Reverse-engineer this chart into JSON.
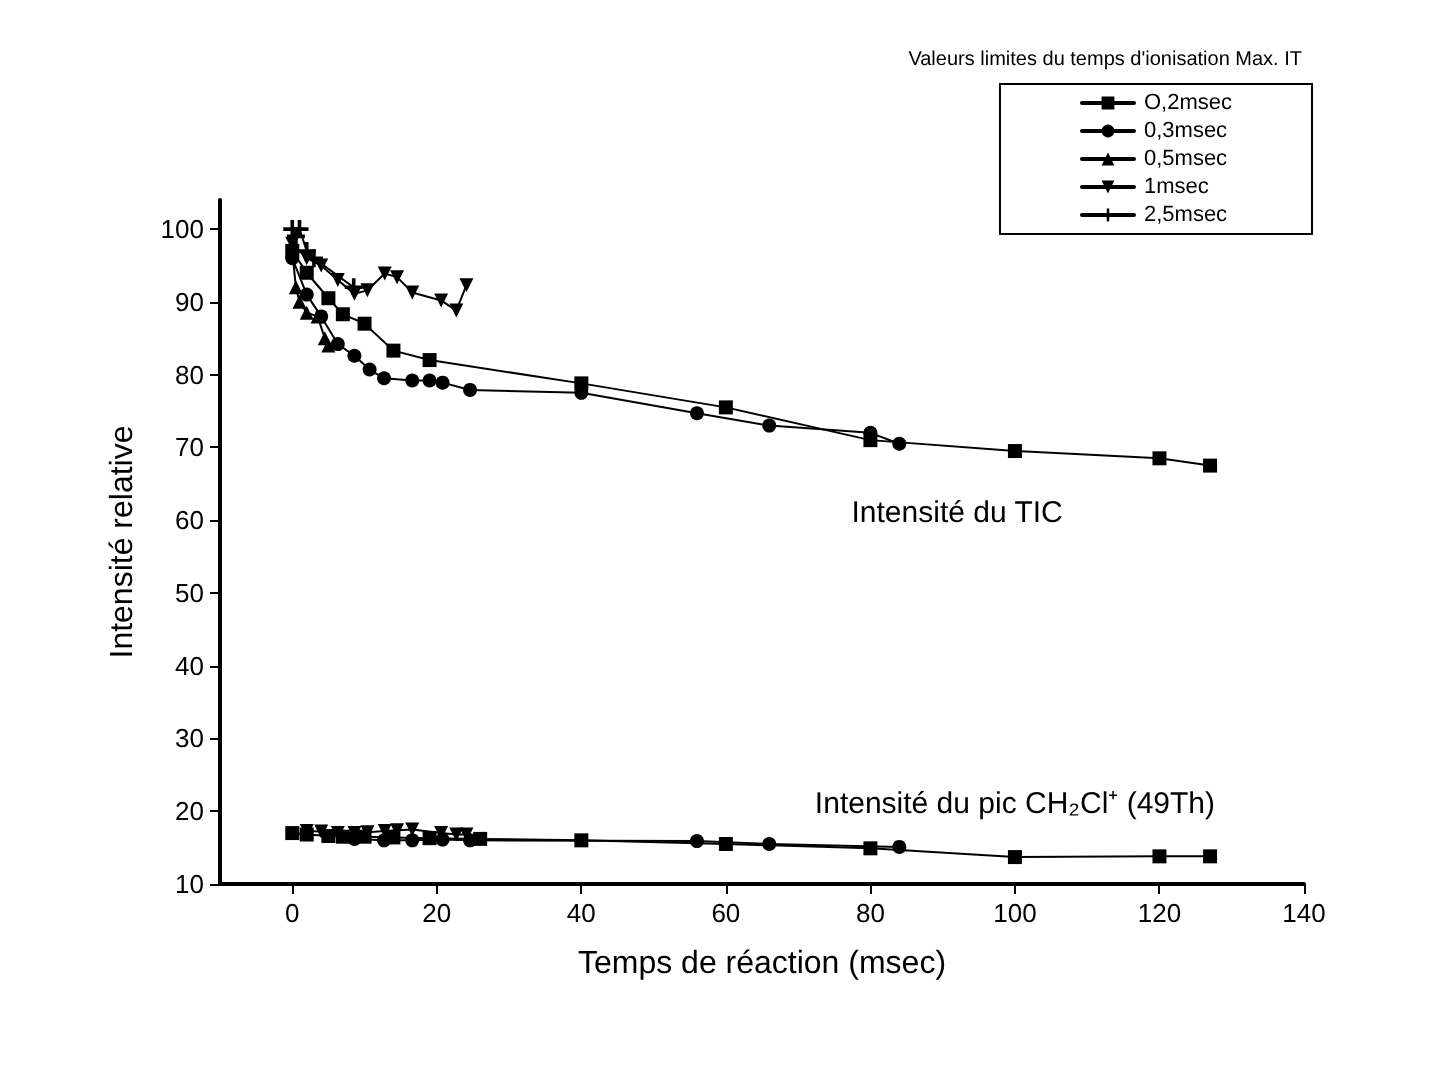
{
  "chart_data": {
    "type": "line",
    "xlabel": "Temps de réaction (msec)",
    "ylabel": "Intensité relative",
    "legend_title": "Valeurs limites du temps d'ionisation Max. IT",
    "legend": "top right",
    "grid": false,
    "line_style": "solid",
    "xlim": [
      -10,
      140
    ],
    "xticks": [
      0,
      20,
      40,
      60,
      80,
      100,
      120,
      140
    ],
    "ylim": [
      10,
      104
    ],
    "yticks": [
      10,
      20,
      30,
      40,
      50,
      60,
      70,
      80,
      90,
      100
    ],
    "annotations": [
      "Intensité du TIC",
      "Intensité du pic CH₂Cl⁺ (49Th)"
    ],
    "series": [
      {
        "name": "O,2msec",
        "color": "#000000",
        "marker": "square",
        "x": [
          0,
          2,
          5,
          7,
          10,
          14,
          19,
          40,
          60,
          80,
          100,
          120,
          127
        ],
        "values": [
          97,
          94,
          90.5,
          88.3,
          87,
          83.3,
          82,
          78.8,
          75.5,
          71,
          69.5,
          68.5,
          67.5
        ]
      },
      {
        "name": "0,3msec",
        "color": "#000000",
        "marker": "circle",
        "x": [
          0,
          2,
          4,
          6.3,
          8.6,
          10.7,
          12.7,
          16.6,
          19,
          20.8,
          24.6,
          40,
          56,
          66,
          80,
          84
        ],
        "values": [
          96,
          91,
          88,
          84.2,
          82.6,
          80.7,
          79.5,
          79.2,
          79.2,
          78.9,
          77.9,
          77.5,
          74.7,
          73,
          72,
          70.5
        ]
      },
      {
        "name": "0,5msec",
        "color": "#000000",
        "marker": "triangle",
        "x": [
          0,
          0.5,
          1,
          2,
          3.5,
          4.5,
          5
        ],
        "values": [
          97,
          92,
          90,
          88.5,
          88,
          85,
          84
        ]
      },
      {
        "name": "1msec",
        "color": "#000000",
        "marker": "triangle-down",
        "x": [
          0,
          2,
          4,
          6.3,
          8.6,
          10.4,
          12.8,
          14.5,
          16.6,
          20.6,
          22.7,
          24.1
        ],
        "values": [
          98,
          96,
          95,
          93,
          91.1,
          91.6,
          93.9,
          93.4,
          91.3,
          90.2,
          88.8,
          92.3
        ]
      },
      {
        "name": "2,5msec",
        "color": "#000000",
        "marker": "cross",
        "x": [
          0,
          0.5,
          1,
          2,
          3,
          8.5
        ],
        "values": [
          100,
          99,
          100,
          97,
          96,
          92
        ]
      },
      {
        "color": "#000000",
        "marker": "square",
        "x": [
          0,
          2,
          5,
          7,
          10,
          14,
          19,
          26,
          40,
          60,
          80,
          100,
          120,
          127
        ],
        "values": [
          17,
          16.8,
          16.6,
          16.5,
          16.5,
          16.4,
          16.3,
          16.2,
          16,
          15.5,
          14.9,
          13.7,
          13.8,
          13.8
        ]
      },
      {
        "color": "#000000",
        "marker": "circle",
        "x": [
          8.6,
          12.7,
          16.6,
          20.8,
          24.6,
          56,
          66,
          84
        ],
        "values": [
          16.2,
          16,
          16,
          16.1,
          16,
          15.9,
          15.5,
          15.1
        ]
      },
      {
        "color": "#000000",
        "marker": "triangle-down",
        "x": [
          2,
          4,
          6.3,
          8.6,
          10.4,
          12.8,
          14.5,
          16.6,
          20.6,
          22.7,
          24.1
        ],
        "values": [
          17.3,
          17.2,
          17,
          17,
          17.1,
          17.3,
          17.4,
          17.5,
          17,
          16.8,
          16.8
        ]
      }
    ]
  }
}
